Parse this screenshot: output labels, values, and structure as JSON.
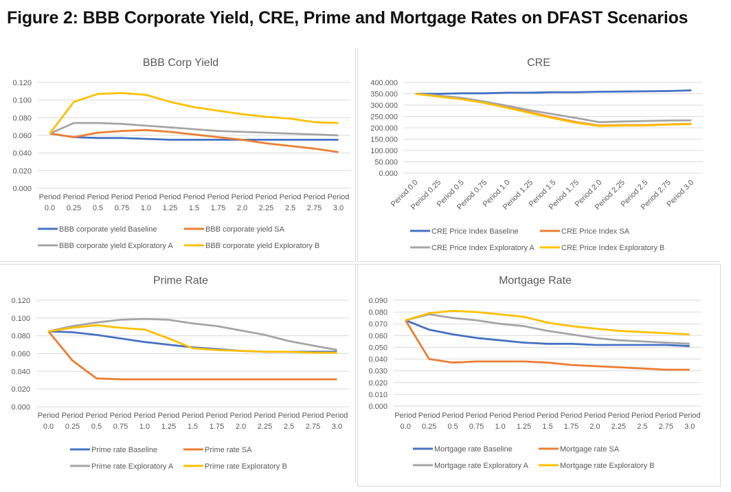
{
  "figure_title": "Figure 2: BBB Corporate Yield, CRE, Prime and Mortgage Rates on DFAST Scenarios",
  "colors": {
    "Baseline": "#4472c4",
    "SA": "#ed7d31",
    "Exploratory A": "#a5a5a5",
    "Exploratory B": "#ffc000"
  },
  "chart_data": [
    {
      "type": "line",
      "title": "BBB Corp Yield",
      "xlabel": "",
      "ylabel": "",
      "ylim": [
        0,
        0.12
      ],
      "yticks": [
        "0.000",
        "0.020",
        "0.040",
        "0.060",
        "0.080",
        "0.100",
        "0.120"
      ],
      "grid": true,
      "legend": "bottom",
      "categories": [
        "Period 0.0",
        "Period 0.25",
        "Period 0.5",
        "Period 0.75",
        "Period 1.0",
        "Period 1.25",
        "Period 1.5",
        "Period 1.75",
        "Period 2.0",
        "Period 2.25",
        "Period 2.5",
        "Period 2.75",
        "Period 3.0"
      ],
      "series": [
        {
          "name": "BBB corporate yield Baseline",
          "color": "#4472c4",
          "values": [
            0.062,
            0.058,
            0.057,
            0.057,
            0.056,
            0.055,
            0.055,
            0.055,
            0.055,
            0.055,
            0.055,
            0.055,
            0.055
          ]
        },
        {
          "name": "BBB corporate yield SA",
          "color": "#ed7d31",
          "values": [
            0.062,
            0.058,
            0.063,
            0.065,
            0.066,
            0.064,
            0.061,
            0.058,
            0.055,
            0.051,
            0.048,
            0.045,
            0.041
          ]
        },
        {
          "name": "BBB corporate yield Exploratory A",
          "color": "#a5a5a5",
          "values": [
            0.062,
            0.074,
            0.074,
            0.073,
            0.071,
            0.069,
            0.067,
            0.065,
            0.064,
            0.063,
            0.062,
            0.061,
            0.06
          ]
        },
        {
          "name": "BBB corporate yield Exploratory B",
          "color": "#ffc000",
          "values": [
            0.062,
            0.098,
            0.107,
            0.108,
            0.106,
            0.098,
            0.092,
            0.088,
            0.084,
            0.081,
            0.079,
            0.075,
            0.074
          ]
        }
      ]
    },
    {
      "type": "line",
      "title": "CRE",
      "xlabel": "",
      "ylabel": "",
      "ylim": [
        0,
        400
      ],
      "yticks": [
        "0.000",
        "50.000",
        "100.000",
        "150.000",
        "200.000",
        "250.000",
        "300.000",
        "350.000",
        "400.000"
      ],
      "grid": true,
      "legend": "bottom",
      "categories": [
        "Period 0.0",
        "Period 0.25",
        "Period 0.5",
        "Period 0.75",
        "Period 1.0",
        "Period 1.25",
        "Period 1.5",
        "Period 1.75",
        "Period 2.0",
        "Period 2.25",
        "Period 2.5",
        "Period 2.75",
        "Period 3.0"
      ],
      "series": [
        {
          "name": "CRE Price Index Baseline",
          "color": "#4472c4",
          "values": [
            350,
            350,
            352,
            352,
            355,
            355,
            357,
            357,
            359,
            360,
            361,
            362,
            365
          ]
        },
        {
          "name": "CRE Price Index SA",
          "color": "#ed7d31",
          "values": [
            350,
            340,
            328,
            312,
            290,
            268,
            245,
            225,
            210,
            212,
            212,
            215,
            218
          ]
        },
        {
          "name": "CRE Price Index Exploratory A",
          "color": "#a5a5a5",
          "values": [
            350,
            342,
            332,
            316,
            297,
            277,
            260,
            243,
            225,
            228,
            230,
            232,
            233
          ]
        },
        {
          "name": "CRE Price Index Exploratory B",
          "color": "#ffc000",
          "values": [
            350,
            338,
            326,
            310,
            288,
            265,
            242,
            222,
            208,
            210,
            210,
            214,
            216
          ]
        }
      ]
    },
    {
      "type": "line",
      "title": "Prime Rate",
      "xlabel": "",
      "ylabel": "",
      "ylim": [
        0,
        0.12
      ],
      "yticks": [
        "0.000",
        "0.020",
        "0.040",
        "0.060",
        "0.080",
        "0.100",
        "0.120"
      ],
      "grid": true,
      "legend": "bottom",
      "categories": [
        "Period 0.0",
        "Period 0.25",
        "Period 0.5",
        "Period 0.75",
        "Period 1.0",
        "Period 1.25",
        "Period 1.5",
        "Period 1.75",
        "Period 2.0",
        "Period 2.25",
        "Period 2.5",
        "Period 2.75",
        "Period 3.0"
      ],
      "series": [
        {
          "name": "Prime rate Baseline",
          "color": "#4472c4",
          "values": [
            0.085,
            0.084,
            0.081,
            0.077,
            0.073,
            0.07,
            0.067,
            0.065,
            0.063,
            0.062,
            0.062,
            0.062,
            0.062
          ]
        },
        {
          "name": "Prime rate SA",
          "color": "#ed7d31",
          "values": [
            0.085,
            0.052,
            0.032,
            0.031,
            0.031,
            0.031,
            0.031,
            0.031,
            0.031,
            0.031,
            0.031,
            0.031,
            0.031
          ]
        },
        {
          "name": "Prime rate Exploratory A",
          "color": "#a5a5a5",
          "values": [
            0.085,
            0.091,
            0.095,
            0.098,
            0.099,
            0.098,
            0.094,
            0.091,
            0.086,
            0.081,
            0.074,
            0.069,
            0.064
          ]
        },
        {
          "name": "Prime rate Exploratory B",
          "color": "#ffc000",
          "values": [
            0.085,
            0.089,
            0.092,
            0.089,
            0.087,
            0.077,
            0.066,
            0.064,
            0.063,
            0.062,
            0.062,
            0.061,
            0.061
          ]
        }
      ]
    },
    {
      "type": "line",
      "title": "Mortgage Rate",
      "xlabel": "",
      "ylabel": "",
      "ylim": [
        0,
        0.09
      ],
      "yticks": [
        "0.000",
        "0.010",
        "0.020",
        "0.030",
        "0.040",
        "0.050",
        "0.060",
        "0.070",
        "0.080",
        "0.090"
      ],
      "grid": true,
      "legend": "bottom",
      "categories": [
        "Period 0.0",
        "Period 0.25",
        "Period 0.5",
        "Period 0.75",
        "Period 1.0",
        "Period 1.25",
        "Period 1.5",
        "Period 1.75",
        "Period 2.0",
        "Period 2.25",
        "Period 2.5",
        "Period 2.75",
        "Period 3.0"
      ],
      "series": [
        {
          "name": "Mortgage rate Baseline",
          "color": "#4472c4",
          "values": [
            0.073,
            0.065,
            0.061,
            0.058,
            0.056,
            0.054,
            0.053,
            0.053,
            0.052,
            0.052,
            0.052,
            0.052,
            0.051
          ]
        },
        {
          "name": "Mortgage rate SA",
          "color": "#ed7d31",
          "values": [
            0.073,
            0.04,
            0.037,
            0.038,
            0.038,
            0.038,
            0.037,
            0.035,
            0.034,
            0.033,
            0.032,
            0.031,
            0.031
          ]
        },
        {
          "name": "Mortgage rate Exploratory A",
          "color": "#a5a5a5",
          "values": [
            0.073,
            0.078,
            0.075,
            0.073,
            0.07,
            0.068,
            0.064,
            0.061,
            0.058,
            0.056,
            0.055,
            0.054,
            0.053
          ]
        },
        {
          "name": "Mortgage rate Exploratory B",
          "color": "#ffc000",
          "values": [
            0.073,
            0.079,
            0.081,
            0.08,
            0.078,
            0.076,
            0.071,
            0.068,
            0.066,
            0.064,
            0.063,
            0.062,
            0.061
          ]
        }
      ]
    }
  ]
}
